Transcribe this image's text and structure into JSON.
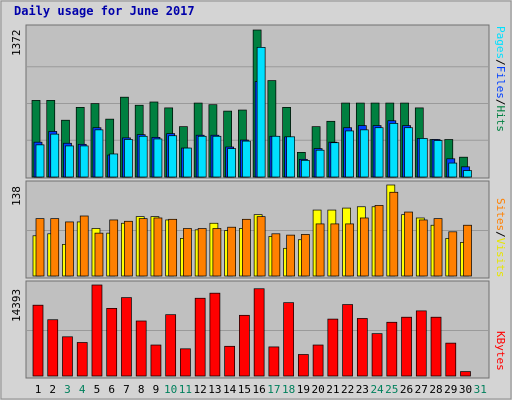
{
  "title": "Daily usage for June 2017",
  "colors": {
    "hits": "#008040",
    "files": "#0040ff",
    "pages": "#00e0ff",
    "visits": "#ffff00",
    "sites": "#ff8000",
    "kbytes": "#ff0000",
    "background": "#c0c0c0",
    "frame": "#d4d4d4",
    "title": "#0000aa",
    "weekend_label": "#00805c"
  },
  "legend": {
    "top": {
      "hits": "Hits",
      "files": "Files",
      "pages": "Pages",
      "sep": "/"
    },
    "mid": {
      "visits": "Visits",
      "sites": "Sites",
      "sep": "/"
    },
    "bottom": {
      "kbytes": "KBytes"
    }
  },
  "chart_data": [
    {
      "type": "bar",
      "title": "Hits / Files / Pages",
      "ymax_label": "1372",
      "ylim": [
        0,
        1372
      ],
      "categories": [
        "1",
        "2",
        "3",
        "4",
        "5",
        "6",
        "7",
        "8",
        "9",
        "10",
        "11",
        "12",
        "13",
        "14",
        "15",
        "16",
        "17",
        "18",
        "19",
        "20",
        "21",
        "22",
        "23",
        "24",
        "25",
        "26",
        "27",
        "28",
        "29",
        "30",
        "31"
      ],
      "series": [
        {
          "name": "Hits",
          "values": [
            715,
            715,
            530,
            650,
            685,
            540,
            745,
            670,
            700,
            645,
            470,
            690,
            675,
            615,
            625,
            1372,
            900,
            650,
            230,
            470,
            520,
            690,
            690,
            690,
            690,
            690,
            645,
            350,
            350,
            185,
            0
          ]
        },
        {
          "name": "Files",
          "values": [
            325,
            425,
            315,
            305,
            460,
            205,
            365,
            395,
            370,
            405,
            270,
            390,
            390,
            280,
            345,
            890,
            380,
            375,
            165,
            265,
            325,
            460,
            480,
            480,
            525,
            480,
            360,
            350,
            170,
            95,
            0
          ]
        },
        {
          "name": "Pages",
          "values": [
            300,
            400,
            290,
            290,
            440,
            215,
            350,
            380,
            355,
            385,
            270,
            380,
            380,
            265,
            335,
            1210,
            380,
            375,
            155,
            250,
            320,
            430,
            440,
            460,
            500,
            460,
            360,
            340,
            130,
            60,
            0
          ]
        }
      ]
    },
    {
      "type": "bar",
      "title": "Visits / Sites",
      "ymax_label": "138",
      "ylim": [
        0,
        138
      ],
      "categories": [
        "1",
        "2",
        "3",
        "4",
        "5",
        "6",
        "7",
        "8",
        "9",
        "10",
        "11",
        "12",
        "13",
        "14",
        "15",
        "16",
        "17",
        "18",
        "19",
        "20",
        "21",
        "22",
        "23",
        "24",
        "25",
        "26",
        "27",
        "28",
        "29",
        "30",
        "31"
      ],
      "series": [
        {
          "name": "Visits",
          "values": [
            61,
            64,
            48,
            82,
            72,
            65,
            80,
            90,
            90,
            85,
            57,
            70,
            80,
            69,
            72,
            93,
            60,
            42,
            55,
            100,
            100,
            103,
            105,
            105,
            138,
            93,
            88,
            77,
            57,
            51,
            0
          ]
        },
        {
          "name": "Sites",
          "values": [
            87,
            87,
            82,
            91,
            65,
            85,
            83,
            87,
            88,
            86,
            72,
            72,
            72,
            74,
            86,
            90,
            64,
            62,
            63,
            79,
            79,
            79,
            88,
            107,
            127,
            97,
            85,
            87,
            67,
            77,
            0
          ]
        }
      ]
    },
    {
      "type": "bar",
      "title": "KBytes",
      "ymax_label": "14393",
      "ylim": [
        0,
        14393
      ],
      "categories": [
        "1",
        "2",
        "3",
        "4",
        "5",
        "6",
        "7",
        "8",
        "9",
        "10",
        "11",
        "12",
        "13",
        "14",
        "15",
        "16",
        "17",
        "18",
        "19",
        "20",
        "21",
        "22",
        "23",
        "24",
        "25",
        "26",
        "27",
        "28",
        "29",
        "30",
        "31"
      ],
      "series": [
        {
          "name": "KBytes",
          "values": [
            11200,
            8900,
            6200,
            5300,
            14393,
            10700,
            12400,
            8700,
            4900,
            9700,
            4300,
            12300,
            13100,
            4700,
            9600,
            13800,
            4600,
            11600,
            3400,
            4900,
            9000,
            11300,
            9100,
            6700,
            8500,
            9300,
            10300,
            9300,
            5200,
            700,
            0
          ]
        }
      ]
    }
  ],
  "x_labels": [
    {
      "text": "1",
      "weekend": false
    },
    {
      "text": "2",
      "weekend": false
    },
    {
      "text": "3",
      "weekend": true
    },
    {
      "text": "4",
      "weekend": true
    },
    {
      "text": "5",
      "weekend": false
    },
    {
      "text": "6",
      "weekend": false
    },
    {
      "text": "7",
      "weekend": false
    },
    {
      "text": "8",
      "weekend": false
    },
    {
      "text": "9",
      "weekend": false
    },
    {
      "text": "10",
      "weekend": true
    },
    {
      "text": "11",
      "weekend": true
    },
    {
      "text": "12",
      "weekend": false
    },
    {
      "text": "13",
      "weekend": false
    },
    {
      "text": "14",
      "weekend": false
    },
    {
      "text": "15",
      "weekend": false
    },
    {
      "text": "16",
      "weekend": false
    },
    {
      "text": "17",
      "weekend": true
    },
    {
      "text": "18",
      "weekend": true
    },
    {
      "text": "19",
      "weekend": false
    },
    {
      "text": "20",
      "weekend": false
    },
    {
      "text": "21",
      "weekend": false
    },
    {
      "text": "22",
      "weekend": false
    },
    {
      "text": "23",
      "weekend": false
    },
    {
      "text": "24",
      "weekend": true
    },
    {
      "text": "25",
      "weekend": true
    },
    {
      "text": "26",
      "weekend": false
    },
    {
      "text": "27",
      "weekend": false
    },
    {
      "text": "28",
      "weekend": false
    },
    {
      "text": "29",
      "weekend": false
    },
    {
      "text": "30",
      "weekend": false
    },
    {
      "text": "31",
      "weekend": true
    }
  ]
}
